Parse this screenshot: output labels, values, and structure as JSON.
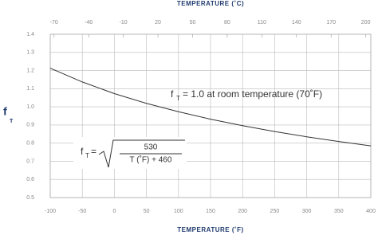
{
  "chart_data": {
    "type": "line",
    "title": "TEMPERATURE (˚C)",
    "xlabel": "TEMPERATURE (˚F)",
    "ylabel": {
      "main": "f",
      "sub": "T"
    },
    "x": [
      -100,
      -50,
      0,
      50,
      100,
      150,
      200,
      250,
      300,
      350,
      400
    ],
    "series": [
      {
        "color": "#333333",
        "values": [
          1.213,
          1.137,
          1.073,
          1.019,
          0.973,
          0.932,
          0.896,
          0.864,
          0.835,
          0.809,
          0.785
        ]
      }
    ],
    "xlim": [
      -100,
      400
    ],
    "xticks": [
      -100,
      -50,
      0,
      50,
      100,
      150,
      200,
      250,
      300,
      350,
      400
    ],
    "x2lim": [
      -73.3,
      204.4
    ],
    "x2ticks": [
      -70,
      -40,
      -10,
      20,
      50,
      80,
      110,
      140,
      170,
      200
    ],
    "ylim": [
      0.5,
      1.4
    ],
    "yticks": [
      0.5,
      0.6,
      0.7,
      0.8,
      0.9,
      {
        "value": 1,
        "label": "1.0"
      },
      1.1,
      1.2,
      1.3,
      1.4
    ],
    "grid": true,
    "annotation": {
      "main": "f",
      "sub": "T",
      "text": "= 1.0 at room temperature (70˚F)"
    },
    "formula": {
      "main": "f",
      "sub": "T",
      "eq": "=",
      "numerator": "530",
      "denominator": "T (˚F) + 460"
    }
  }
}
